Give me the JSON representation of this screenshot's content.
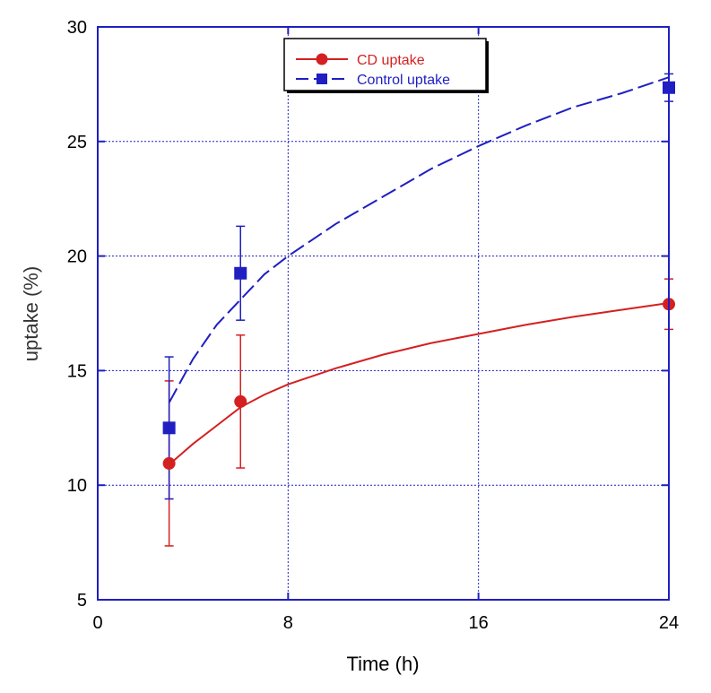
{
  "chart_data": {
    "type": "scatter",
    "title": "",
    "xlabel": "Time (h)",
    "ylabel": "uptake (%)",
    "xlim": [
      0,
      24
    ],
    "ylim": [
      5,
      30
    ],
    "xticks": [
      0,
      8,
      16,
      24
    ],
    "yticks": [
      5,
      10,
      15,
      20,
      25,
      30
    ],
    "grid": true,
    "legend_position": "top-center",
    "series": [
      {
        "name": "CD uptake",
        "color": "#d42020",
        "marker": "circle",
        "line_style": "solid",
        "x": [
          3,
          6,
          24
        ],
        "y": [
          10.95,
          13.65,
          17.9
        ],
        "y_err": [
          3.6,
          2.9,
          1.1
        ],
        "fit": {
          "x": [
            3,
            4,
            5,
            6,
            7,
            8,
            10,
            12,
            14,
            16,
            18,
            20,
            22,
            24
          ],
          "y": [
            10.9,
            11.8,
            12.6,
            13.4,
            13.95,
            14.4,
            15.1,
            15.7,
            16.2,
            16.6,
            17.0,
            17.35,
            17.65,
            17.95
          ]
        }
      },
      {
        "name": "Control uptake",
        "color": "#1f1fc2",
        "marker": "square",
        "line_style": "dashed",
        "x": [
          3,
          6,
          24
        ],
        "y": [
          12.5,
          19.25,
          27.35
        ],
        "y_err": [
          3.1,
          2.05,
          0.6
        ],
        "fit": {
          "x": [
            3,
            4,
            5,
            6,
            7,
            8,
            10,
            12,
            14,
            16,
            18,
            20,
            22,
            24
          ],
          "y": [
            13.6,
            15.5,
            17.0,
            18.1,
            19.2,
            20.0,
            21.4,
            22.6,
            23.8,
            24.8,
            25.7,
            26.5,
            27.1,
            27.8
          ]
        }
      }
    ]
  }
}
